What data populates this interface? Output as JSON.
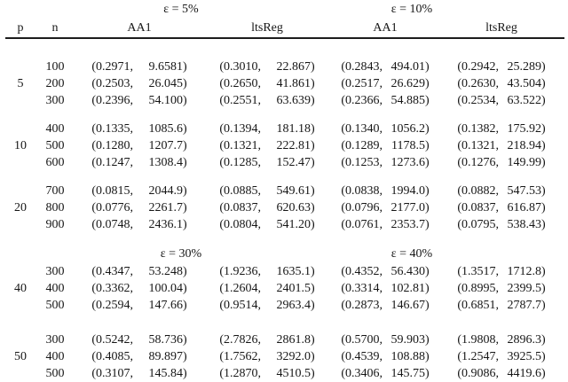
{
  "table": {
    "cols": [
      "p",
      "n",
      "AA1",
      "ltsReg",
      "AA1",
      "ltsReg"
    ],
    "top": {
      "eps": [
        "ε = 5%",
        "ε = 10%"
      ],
      "groups": [
        {
          "p": "5",
          "rows": [
            {
              "n": "100",
              "cells": [
                [
                  "0.2971",
                  "9.6581"
                ],
                [
                  "0.3010",
                  "22.867"
                ],
                [
                  "0.2843",
                  "494.01"
                ],
                [
                  "0.2942",
                  "25.289"
                ]
              ]
            },
            {
              "n": "200",
              "cells": [
                [
                  "0.2503",
                  "26.045"
                ],
                [
                  "0.2650",
                  "41.861"
                ],
                [
                  "0.2517",
                  "26.629"
                ],
                [
                  "0.2630",
                  "43.504"
                ]
              ]
            },
            {
              "n": "300",
              "cells": [
                [
                  "0.2396",
                  "54.100"
                ],
                [
                  "0.2551",
                  "63.639"
                ],
                [
                  "0.2366",
                  "54.885"
                ],
                [
                  "0.2534",
                  "63.522"
                ]
              ]
            }
          ]
        },
        {
          "p": "10",
          "rows": [
            {
              "n": "400",
              "cells": [
                [
                  "0.1335",
                  "1085.6"
                ],
                [
                  "0.1394",
                  "181.18"
                ],
                [
                  "0.1340",
                  "1056.2"
                ],
                [
                  "0.1382",
                  "175.92"
                ]
              ]
            },
            {
              "n": "500",
              "cells": [
                [
                  "0.1280",
                  "1207.7"
                ],
                [
                  "0.1321",
                  "222.81"
                ],
                [
                  "0.1289",
                  "1178.5"
                ],
                [
                  "0.1321",
                  "218.94"
                ]
              ]
            },
            {
              "n": "600",
              "cells": [
                [
                  "0.1247",
                  "1308.4"
                ],
                [
                  "0.1285",
                  "152.47"
                ],
                [
                  "0.1253",
                  "1273.6"
                ],
                [
                  "0.1276",
                  "149.99"
                ]
              ]
            }
          ]
        },
        {
          "p": "20",
          "rows": [
            {
              "n": "700",
              "cells": [
                [
                  "0.0815",
                  "2044.9"
                ],
                [
                  "0.0885",
                  "549.61"
                ],
                [
                  "0.0838",
                  "1994.0"
                ],
                [
                  "0.0882",
                  "547.53"
                ]
              ]
            },
            {
              "n": "800",
              "cells": [
                [
                  "0.0776",
                  "2261.7"
                ],
                [
                  "0.0837",
                  "620.63"
                ],
                [
                  "0.0796",
                  "2177.0"
                ],
                [
                  "0.0837",
                  "616.87"
                ]
              ]
            },
            {
              "n": "900",
              "cells": [
                [
                  "0.0748",
                  "2436.1"
                ],
                [
                  "0.0804",
                  "541.20"
                ],
                [
                  "0.0761",
                  "2353.7"
                ],
                [
                  "0.0795",
                  "538.43"
                ]
              ]
            }
          ]
        }
      ]
    },
    "bottom": {
      "eps": [
        "ε = 30%",
        "ε = 40%"
      ],
      "groups": [
        {
          "p": "40",
          "rows": [
            {
              "n": "300",
              "cells": [
                [
                  "0.4347",
                  "53.248"
                ],
                [
                  "1.9236",
                  "1635.1"
                ],
                [
                  "0.4352",
                  "56.430"
                ],
                [
                  "1.3517",
                  "1712.8"
                ]
              ]
            },
            {
              "n": "400",
              "cells": [
                [
                  "0.3362",
                  "100.04"
                ],
                [
                  "1.2604",
                  "2401.5"
                ],
                [
                  "0.3314",
                  "102.81"
                ],
                [
                  "0.8995",
                  "2399.5"
                ]
              ]
            },
            {
              "n": "500",
              "cells": [
                [
                  "0.2594",
                  "147.66"
                ],
                [
                  "0.9514",
                  "2963.4"
                ],
                [
                  "0.2873",
                  "146.67"
                ],
                [
                  "0.6851",
                  "2787.7"
                ]
              ]
            }
          ]
        },
        {
          "p": "50",
          "rows": [
            {
              "n": "300",
              "cells": [
                [
                  "0.5242",
                  "58.736"
                ],
                [
                  "2.7826",
                  "2861.8"
                ],
                [
                  "0.5700",
                  "59.903"
                ],
                [
                  "1.9808",
                  "2896.3"
                ]
              ]
            },
            {
              "n": "400",
              "cells": [
                [
                  "0.4085",
                  "89.897"
                ],
                [
                  "1.7562",
                  "3292.0"
                ],
                [
                  "0.4539",
                  "108.88"
                ],
                [
                  "1.2547",
                  "3925.5"
                ]
              ]
            },
            {
              "n": "500",
              "cells": [
                [
                  "0.3107",
                  "145.84"
                ],
                [
                  "1.2870",
                  "4510.5"
                ],
                [
                  "0.3406",
                  "145.75"
                ],
                [
                  "0.9086",
                  "4419.6"
                ]
              ]
            }
          ]
        }
      ]
    }
  }
}
